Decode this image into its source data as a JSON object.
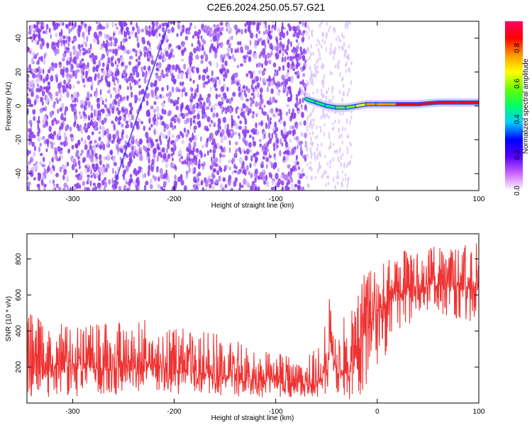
{
  "title": "C2E6.2024.250.05.57.G21",
  "colors": {
    "series": "#ee3333",
    "spec_noise": "#8a3cf0",
    "spec_noise_light": "#d9c2fb",
    "axis": "#000000"
  },
  "chart_data": [
    {
      "type": "heatmap",
      "title": "C2E6.2024.250.05.57.G21",
      "xlabel": "Height of straight line (km)",
      "ylabel": "Frequency (Hz)",
      "xlim": [
        -345,
        100
      ],
      "ylim": [
        -50,
        50
      ],
      "x_ticks": [
        -300,
        -200,
        -100,
        0,
        100
      ],
      "y_ticks": [
        -40,
        -20,
        0,
        20,
        40
      ],
      "colorbar": {
        "label": "Normalized spectral amplitude",
        "range": [
          0.0,
          0.95
        ],
        "ticks": [
          0.0,
          0.2,
          0.4,
          0.6,
          0.8
        ],
        "colormap": [
          "#ffffff",
          "#cc66ff",
          "#5500ff",
          "#0000ff",
          "#00ccff",
          "#00ff66",
          "#66ff00",
          "#ffff00",
          "#ff9900",
          "#ff0000",
          "#ff0066"
        ]
      },
      "noise_region": {
        "x_range": [
          -345,
          -70
        ],
        "freq_range": [
          -50,
          50
        ]
      },
      "sparse_region": {
        "x_range": [
          -70,
          -25
        ]
      },
      "streak": {
        "x": [
          -258,
          -205
        ],
        "freq": [
          -45,
          50
        ]
      },
      "signal_ridge": {
        "x": [
          -70,
          -60,
          -50,
          -40,
          -30,
          -20,
          -10,
          0,
          20,
          40,
          60,
          80,
          100
        ],
        "freq": [
          4,
          2,
          0,
          -1,
          -1,
          0,
          1,
          1,
          1,
          1,
          2,
          2,
          2
        ],
        "amplitude": [
          0.25,
          0.35,
          0.3,
          0.45,
          0.5,
          0.6,
          0.7,
          0.75,
          0.8,
          0.8,
          0.9,
          0.9,
          0.85
        ]
      }
    },
    {
      "type": "line",
      "xlabel": "Height of straight line (km)",
      "ylabel": "SNR (10 * v/v)",
      "xlim": [
        -345,
        100
      ],
      "ylim": [
        0,
        940
      ],
      "x_ticks": [
        -300,
        -200,
        -100,
        0,
        100
      ],
      "y_ticks": [
        200,
        400,
        600,
        800
      ],
      "series": [
        {
          "x": [
            -345,
            -300,
            -250,
            -220,
            -200,
            -150,
            -100,
            -70,
            -55,
            -48,
            -45,
            -40,
            -30,
            -20,
            -10,
            0,
            20,
            40,
            60,
            80,
            100
          ],
          "low": [
            30,
            30,
            40,
            60,
            50,
            40,
            30,
            30,
            20,
            30,
            200,
            20,
            10,
            20,
            60,
            150,
            380,
            480,
            480,
            460,
            430
          ],
          "high": [
            500,
            420,
            470,
            480,
            420,
            380,
            280,
            260,
            330,
            620,
            480,
            450,
            520,
            700,
            730,
            790,
            850,
            880,
            880,
            870,
            920
          ],
          "center": [
            210,
            200,
            190,
            220,
            180,
            150,
            120,
            110,
            120,
            250,
            380,
            160,
            190,
            280,
            400,
            520,
            600,
            650,
            660,
            650,
            650
          ]
        }
      ]
    }
  ]
}
